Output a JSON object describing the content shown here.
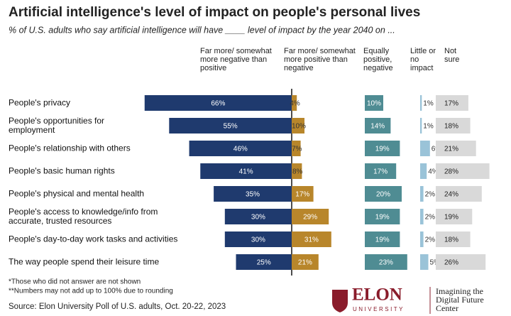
{
  "chart_data": {
    "type": "bar",
    "title": "Artificial intelligence's level of impact on people's personal lives",
    "subtitle": "% of U.S. adults who say artificial intelligence will have ____ level of impact by the year 2040 on ...",
    "categories": [
      "People's privacy",
      "People's opportunities for employment",
      "People's relationship with others",
      "People's basic human rights",
      "People's physical and mental health",
      "People's access to knowledge/info from accurate, trusted resources",
      "People's day-to-day work tasks and activities",
      "The way people spend their leisure time"
    ],
    "series": [
      {
        "name": "Far more/ somewhat more negative than positive",
        "color": "#1f3a6e",
        "values": [
          66,
          55,
          46,
          41,
          35,
          30,
          30,
          25
        ],
        "value_labels": [
          "66%",
          "55%",
          "46%",
          "41%",
          "35%",
          "30%",
          "30%",
          "25%"
        ]
      },
      {
        "name": "Far more/ somewhat more positive than negative",
        "color": "#b8862b",
        "values": [
          4,
          10,
          7,
          8,
          17,
          29,
          31,
          21
        ],
        "value_labels": [
          "4%",
          "10%",
          "7%",
          "8%",
          "17%",
          "29%",
          "31%",
          "21%"
        ]
      },
      {
        "name": "Equally positive, negative",
        "color": "#4f8c93",
        "values": [
          10,
          14,
          19,
          17,
          20,
          19,
          19,
          23
        ],
        "value_labels": [
          "10%",
          "14%",
          "19%",
          "17%",
          "20%",
          "19%",
          "19%",
          "23%"
        ]
      },
      {
        "name": "Little or no impact",
        "color": "#9ac3d8",
        "values": [
          1,
          1,
          6,
          4,
          2,
          2,
          2,
          5
        ],
        "value_labels": [
          "1%",
          "1%",
          "6%",
          "4%",
          "2%",
          "2%",
          "2%",
          "5%"
        ]
      },
      {
        "name": "Not sure",
        "color": "#d9d9d9",
        "values": [
          17,
          18,
          21,
          28,
          24,
          19,
          18,
          26
        ],
        "value_labels": [
          "17%",
          "18%",
          "21%",
          "28%",
          "24%",
          "19%",
          "18%",
          "26%"
        ]
      }
    ],
    "notes": [
      "*Those who did not answer are not shown",
      "**Numbers may not add up to 100% due to rounding"
    ],
    "source": "Source: Elon University Poll of U.S. adults, Oct. 20-22, 2023",
    "logo": {
      "name": "ELON",
      "sub": "UNIVERSITY",
      "center": "Imagining the Digital Future Center"
    }
  }
}
